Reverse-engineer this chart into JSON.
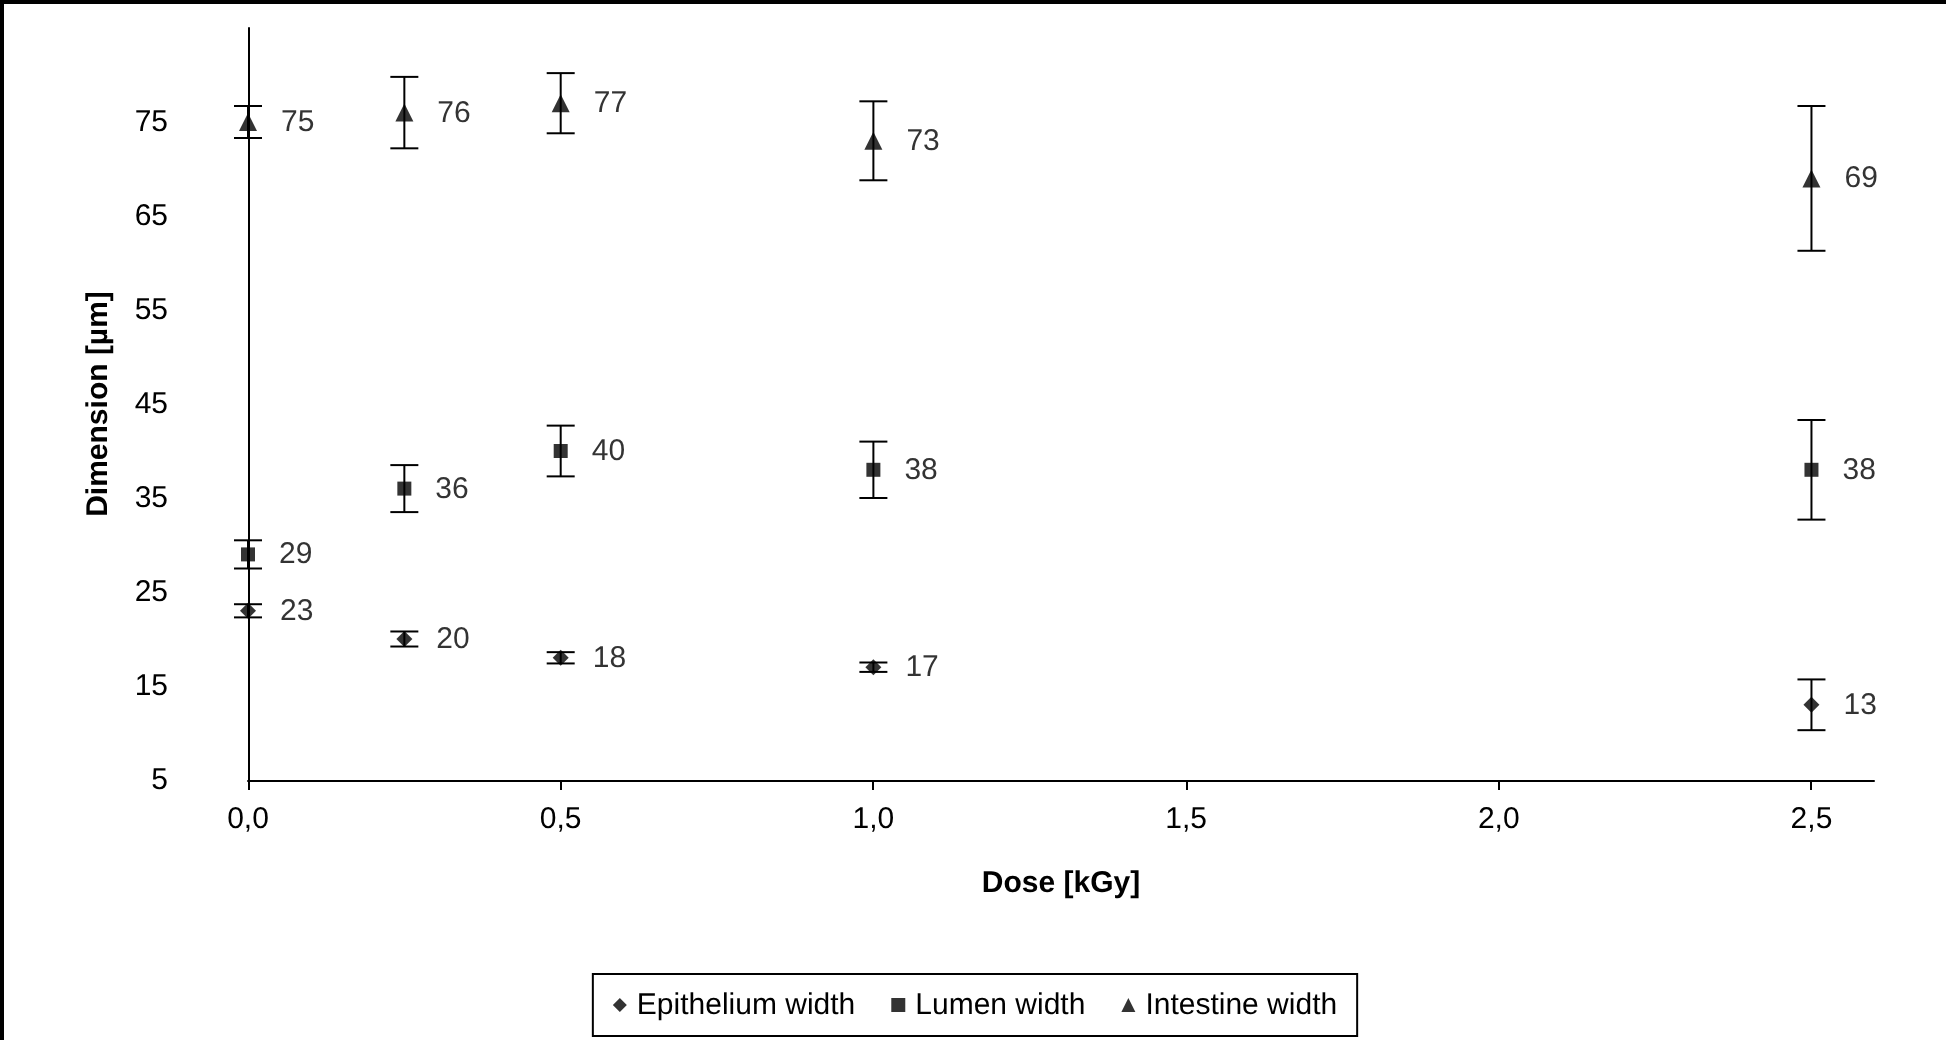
{
  "chart_data": {
    "type": "scatter",
    "xlabel": "Dose [kGy]",
    "ylabel": "Dimension [µm]",
    "x": [
      0,
      0.25,
      0.5,
      1.0,
      2.5
    ],
    "xlim": [
      0,
      2.6
    ],
    "xticks": [
      {
        "value": 0,
        "label": "0,0"
      },
      {
        "value": 0.5,
        "label": "0,5"
      },
      {
        "value": 1.0,
        "label": "1,0"
      },
      {
        "value": 1.5,
        "label": "1,5"
      },
      {
        "value": 2.0,
        "label": "2,0"
      },
      {
        "value": 2.5,
        "label": "2,5"
      }
    ],
    "ylim": [
      5,
      85
    ],
    "yticks": [
      5,
      15,
      25,
      35,
      45,
      55,
      65,
      75
    ],
    "series": [
      {
        "name": "Epithelium width",
        "color": "#000000",
        "marker": "diamond",
        "values": [
          23,
          20,
          18,
          17,
          13
        ],
        "errors": [
          0.7,
          0.8,
          0.6,
          0.5,
          2.7
        ]
      },
      {
        "name": "Lumen width",
        "color": "#000000",
        "marker": "square",
        "values": [
          29,
          36,
          40,
          38,
          38
        ],
        "errors": [
          1.5,
          2.5,
          2.7,
          3,
          5.3
        ]
      },
      {
        "name": "Intestine width",
        "color": "#000000",
        "marker": "triangle",
        "values": [
          75,
          76,
          77,
          73,
          69
        ],
        "errors": [
          1.7,
          3.8,
          3.2,
          4.2,
          7.7
        ]
      }
    ],
    "data_labels": true,
    "grid": false,
    "legend": "bottom"
  }
}
